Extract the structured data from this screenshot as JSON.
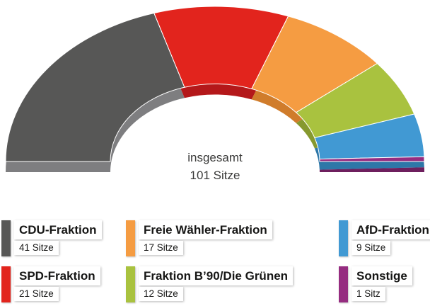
{
  "chart_data": {
    "type": "half-donut",
    "title": "insgesamt 101 Sitze",
    "center_label": {
      "line1": "insgesamt",
      "line2": "101 Sitze"
    },
    "total": 101,
    "start_angle_deg": 180,
    "end_angle_deg": 0,
    "legend_position": "bottom",
    "series": [
      {
        "name": "CDU-Fraktion",
        "seats": 41,
        "seats_label": "41 Sitze",
        "color": "#575756",
        "depth_color": "#7e7e80"
      },
      {
        "name": "SPD-Fraktion",
        "seats": 21,
        "seats_label": "21 Sitze",
        "color": "#e2241d",
        "depth_color": "#b4181a"
      },
      {
        "name": "Freie Wähler-Fraktion",
        "seats": 17,
        "seats_label": "17 Sitze",
        "color": "#f59c42",
        "depth_color": "#d07c2b"
      },
      {
        "name": "Fraktion B’90/Die Grünen",
        "seats": 12,
        "seats_label": "12 Sitze",
        "color": "#a9c23f",
        "depth_color": "#86992f"
      },
      {
        "name": "AfD-Fraktion",
        "seats": 9,
        "seats_label": "9 Sitze",
        "color": "#4199d3",
        "depth_color": "#2e77a8"
      },
      {
        "name": "Sonstige",
        "seats": 1,
        "seats_label": "1 Sitz",
        "color": "#952c80",
        "depth_color": "#6e1f5e"
      }
    ]
  },
  "legend": {
    "rows": [
      [
        0,
        2,
        4
      ],
      [
        1,
        3,
        5
      ]
    ]
  }
}
